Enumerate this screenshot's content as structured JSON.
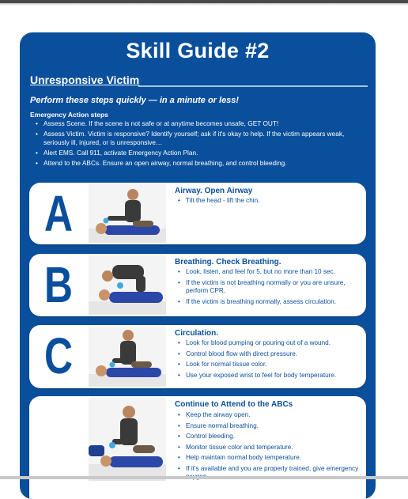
{
  "guide": {
    "title": "Skill Guide #2",
    "subtitle": "Unresponsive Victim",
    "tagline": "Perform these steps quickly — in a minute or less!"
  },
  "emergency_action": {
    "heading": "Emergency Action steps",
    "items": [
      "Assess Scene. If the scene is not safe or at anytime becomes unsafe, GET OUT!",
      "Assess Victim. Victim is responsive? Identify yourself; ask if it's okay to help. If the victim appears weak, seriously ill, injured, or is unresponsive…",
      "Alert EMS. Call 911, activate Emergency Action Plan.",
      "Attend to the ABCs. Ensure an open airway, normal breathing, and control bleeding."
    ]
  },
  "steps": [
    {
      "letter": "A",
      "title": "Airway. Open Airway",
      "bullets": [
        "Tilt the head - lift the chin."
      ]
    },
    {
      "letter": "B",
      "title": "Breathing. Check Breathing.",
      "bullets": [
        "Look, listen, and feel for 5, but no more than 10 sec.",
        "If the victim is not breathing normally or you are unsure, perform CPR.",
        "If the victim is breathing normally, assess circulation."
      ]
    },
    {
      "letter": "C",
      "title": "Circulation.",
      "bullets": [
        "Look for blood pumping or pouring out of a wound.",
        "Control blood flow with direct pressure.",
        "Look for normal tissue color.",
        "Use your exposed wrist to feel for body temperature."
      ]
    },
    {
      "letter": "",
      "title": "Continue to Attend to the ABCs",
      "bullets": [
        "Keep the airway open.",
        "Ensure normal breathing.",
        "Control bleeding.",
        "Monitor tissue color and temperature.",
        "Help maintain normal body temperature.",
        "If it's available and you are properly trained, give emergency oxygen."
      ]
    }
  ],
  "colors": {
    "panel_blue": "#0a4f9c",
    "card_white": "#ffffff",
    "rescuer_shirt": "#3a3a3a",
    "victim_shirt": "#2b47a8",
    "gloves": "#3fa9e0"
  },
  "icons": {
    "photo": "rescuer-with-victim-photo"
  }
}
